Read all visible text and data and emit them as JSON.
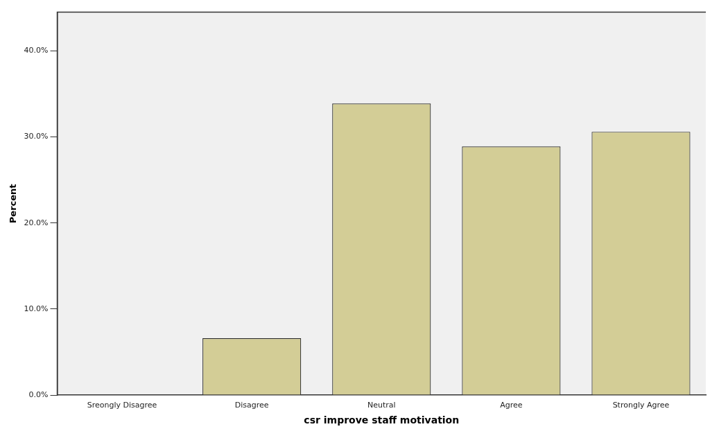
{
  "chart_data": {
    "type": "bar",
    "xlabel": "csr improve staff motivation",
    "ylabel": "Percent",
    "categories": [
      "Sreongly Disagree",
      "Disagree",
      "Neutral",
      "Agree",
      "Strongly Agree"
    ],
    "values": [
      0,
      6.6,
      33.9,
      28.9,
      30.6
    ],
    "color": "#d3cd96",
    "ylim": [
      0,
      44.5
    ],
    "yticks": [
      {
        "value": 0,
        "label": "0.0%"
      },
      {
        "value": 10,
        "label": "10.0%"
      },
      {
        "value": 20,
        "label": "20.0%"
      },
      {
        "value": 30,
        "label": "30.0%"
      },
      {
        "value": 40,
        "label": "40.0%"
      }
    ],
    "grid": false,
    "legend": false
  }
}
